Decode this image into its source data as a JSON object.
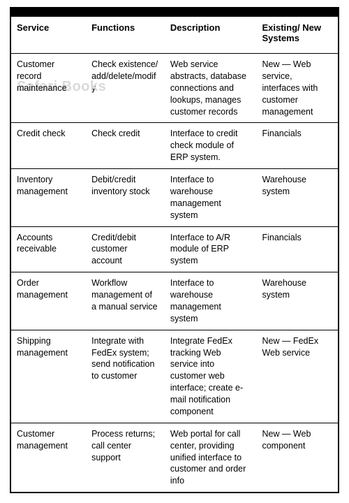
{
  "table": {
    "col_widths_pct": [
      23,
      24,
      28,
      25
    ],
    "headers": [
      "Service",
      "Functions",
      "Description",
      "Existing/ New Systems"
    ],
    "header_fontsize": 13,
    "cell_fontsize": 12.5,
    "line_height": 1.35,
    "border_color": "#000000",
    "top_bar_color": "#000000",
    "background_color": "#ffffff",
    "watermark": {
      "text": "Safari Books",
      "color": "#d9d9d9",
      "fontsize": 20,
      "row_index": 0
    },
    "rows": [
      {
        "service": "Customer record maintenance",
        "functions": "Check existence/ add/delete/modify",
        "description": "Web service abstracts, database connections and lookups, manages customer records",
        "systems": "New — Web service, interfaces with customer management"
      },
      {
        "service": "Credit check",
        "functions": "Check credit",
        "description": "Interface to credit check module of ERP system.",
        "systems": "Financials"
      },
      {
        "service": "Inventory management",
        "functions": "Debit/credit inventory stock",
        "description": "Interface to warehouse management system",
        "systems": "Warehouse system"
      },
      {
        "service": "Accounts receivable",
        "functions": "Credit/debit customer account",
        "description": "Interface to A/R module of ERP system",
        "systems": "Financials"
      },
      {
        "service": "Order management",
        "functions": "Workflow management of a manual service",
        "description": "Interface to warehouse management system",
        "systems": "Warehouse system"
      },
      {
        "service": "Shipping management",
        "functions": "Integrate with FedEx system; send notification to customer",
        "description": "Integrate FedEx tracking Web service into customer web interface; create e-mail notification component",
        "systems": "New — FedEx Web service"
      },
      {
        "service": "Customer management",
        "functions": "Process returns; call center support",
        "description": "Web portal for call center, providing unified interface to customer and order info",
        "systems": "New — Web component"
      }
    ]
  }
}
